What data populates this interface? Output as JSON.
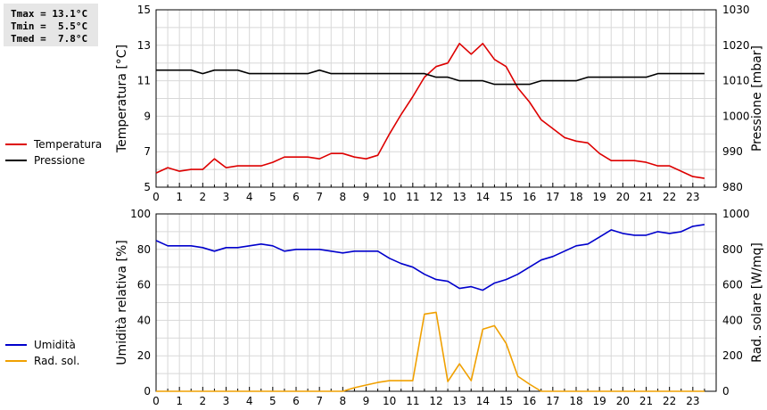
{
  "stats": {
    "tmax": "Tmax = 13.1°C",
    "tmin": "Tmin =  5.5°C",
    "tmed": "Tmed =  7.8°C"
  },
  "chart_data": [
    {
      "type": "line",
      "ylabel_left": "Temperatura [°C]",
      "ylabel_right": "Pressione [mbar]",
      "ylim_left": [
        5,
        15
      ],
      "yticks_left": [
        "5",
        "7",
        "9",
        "11",
        "13",
        "15"
      ],
      "ylim_right": [
        980,
        1030
      ],
      "yticks_right": [
        "980",
        "990",
        "1000",
        "1010",
        "1020",
        "1030"
      ],
      "xlim": [
        0,
        24
      ],
      "xticks": [
        "0",
        "1",
        "2",
        "3",
        "4",
        "5",
        "6",
        "7",
        "8",
        "9",
        "10",
        "11",
        "12",
        "13",
        "14",
        "15",
        "16",
        "17",
        "18",
        "19",
        "20",
        "21",
        "22",
        "23"
      ],
      "grid": true,
      "legend_position": "left",
      "series": [
        {
          "name": "Temperatura",
          "axis": "left",
          "color": "#dd0000",
          "x": [
            0,
            0.5,
            1,
            1.5,
            2,
            2.5,
            3,
            3.5,
            4,
            4.5,
            5,
            5.5,
            6,
            6.5,
            7,
            7.5,
            8,
            8.5,
            9,
            9.5,
            10,
            10.5,
            11,
            11.5,
            12,
            12.5,
            13,
            13.5,
            14,
            14.5,
            15,
            15.5,
            16,
            16.5,
            17,
            17.5,
            18,
            18.5,
            19,
            19.5,
            20,
            20.5,
            21,
            21.5,
            22,
            22.5,
            23,
            23.5
          ],
          "values": [
            5.8,
            6.1,
            5.9,
            6.0,
            6.0,
            6.6,
            6.1,
            6.2,
            6.2,
            6.2,
            6.4,
            6.7,
            6.7,
            6.7,
            6.6,
            6.9,
            6.9,
            6.7,
            6.6,
            6.8,
            8.0,
            9.1,
            10.1,
            11.2,
            11.8,
            12.0,
            13.1,
            12.5,
            13.1,
            12.2,
            11.8,
            10.6,
            9.8,
            8.8,
            8.3,
            7.8,
            7.6,
            7.5,
            6.9,
            6.5,
            6.5,
            6.5,
            6.4,
            6.2,
            6.2,
            5.9,
            5.6,
            5.5
          ]
        },
        {
          "name": "Pressione",
          "axis": "right",
          "color": "#000000",
          "x": [
            0,
            0.5,
            1,
            1.5,
            2,
            2.5,
            3,
            3.5,
            4,
            4.5,
            5,
            5.5,
            6,
            6.5,
            7,
            7.5,
            8,
            8.5,
            9,
            9.5,
            10,
            10.5,
            11,
            11.5,
            12,
            12.5,
            13,
            13.5,
            14,
            14.5,
            15,
            15.5,
            16,
            16.5,
            17,
            17.5,
            18,
            18.5,
            19,
            19.5,
            20,
            20.5,
            21,
            21.5,
            22,
            22.5,
            23,
            23.5
          ],
          "values": [
            1013,
            1013,
            1013,
            1013,
            1012,
            1013,
            1013,
            1013,
            1012,
            1012,
            1012,
            1012,
            1012,
            1012,
            1013,
            1012,
            1012,
            1012,
            1012,
            1012,
            1012,
            1012,
            1012,
            1012,
            1011,
            1011,
            1010,
            1010,
            1010,
            1009,
            1009,
            1009,
            1009,
            1010,
            1010,
            1010,
            1010,
            1011,
            1011,
            1011,
            1011,
            1011,
            1011,
            1012,
            1012,
            1012,
            1012,
            1012
          ]
        }
      ]
    },
    {
      "type": "line",
      "ylabel_left": "Umidità relativa [%]",
      "ylabel_right": "Rad. solare [W/mq]",
      "ylim_left": [
        0,
        100
      ],
      "yticks_left": [
        "0",
        "20",
        "40",
        "60",
        "80",
        "100"
      ],
      "ylim_right": [
        0,
        1000
      ],
      "yticks_right": [
        "0",
        "200",
        "400",
        "600",
        "800",
        "1000"
      ],
      "xlim": [
        0,
        24
      ],
      "xticks": [
        "0",
        "1",
        "2",
        "3",
        "4",
        "5",
        "6",
        "7",
        "8",
        "9",
        "10",
        "11",
        "12",
        "13",
        "14",
        "15",
        "16",
        "17",
        "18",
        "19",
        "20",
        "21",
        "22",
        "23"
      ],
      "grid": true,
      "legend_position": "left",
      "series": [
        {
          "name": "Umidità",
          "axis": "left",
          "color": "#0000cc",
          "x": [
            0,
            0.5,
            1,
            1.5,
            2,
            2.5,
            3,
            3.5,
            4,
            4.5,
            5,
            5.5,
            6,
            6.5,
            7,
            7.5,
            8,
            8.5,
            9,
            9.5,
            10,
            10.5,
            11,
            11.5,
            12,
            12.5,
            13,
            13.5,
            14,
            14.5,
            15,
            15.5,
            16,
            16.5,
            17,
            17.5,
            18,
            18.5,
            19,
            19.5,
            20,
            20.5,
            21,
            21.5,
            22,
            22.5,
            23,
            23.5
          ],
          "values": [
            85,
            82,
            82,
            82,
            81,
            79,
            81,
            81,
            82,
            83,
            82,
            79,
            80,
            80,
            80,
            79,
            78,
            79,
            79,
            79,
            75,
            72,
            70,
            66,
            63,
            62,
            58,
            59,
            57,
            61,
            63,
            66,
            70,
            74,
            76,
            79,
            82,
            83,
            87,
            91,
            89,
            88,
            88,
            90,
            89,
            90,
            93,
            94
          ]
        },
        {
          "name": "Rad. sol.",
          "axis": "right",
          "color": "#f0a000",
          "x": [
            0,
            0.5,
            1,
            1.5,
            2,
            2.5,
            3,
            3.5,
            4,
            4.5,
            5,
            5.5,
            6,
            6.5,
            7,
            7.5,
            8,
            8.5,
            9,
            9.5,
            10,
            10.5,
            11,
            11.5,
            12,
            12.5,
            13,
            13.5,
            14,
            14.5,
            15,
            15.5,
            16,
            16.5,
            17,
            17.5,
            18,
            18.5,
            19,
            19.5,
            20,
            20.5,
            21,
            21.5,
            22,
            22.5,
            23,
            23.5
          ],
          "values": [
            0,
            0,
            0,
            0,
            0,
            0,
            0,
            0,
            0,
            0,
            0,
            0,
            0,
            0,
            0,
            0,
            0,
            20,
            35,
            50,
            60,
            60,
            60,
            435,
            445,
            55,
            155,
            60,
            350,
            370,
            270,
            85,
            40,
            0,
            0,
            0,
            0,
            0,
            0,
            0,
            0,
            0,
            0,
            0,
            0,
            0,
            0,
            0
          ]
        }
      ]
    }
  ]
}
